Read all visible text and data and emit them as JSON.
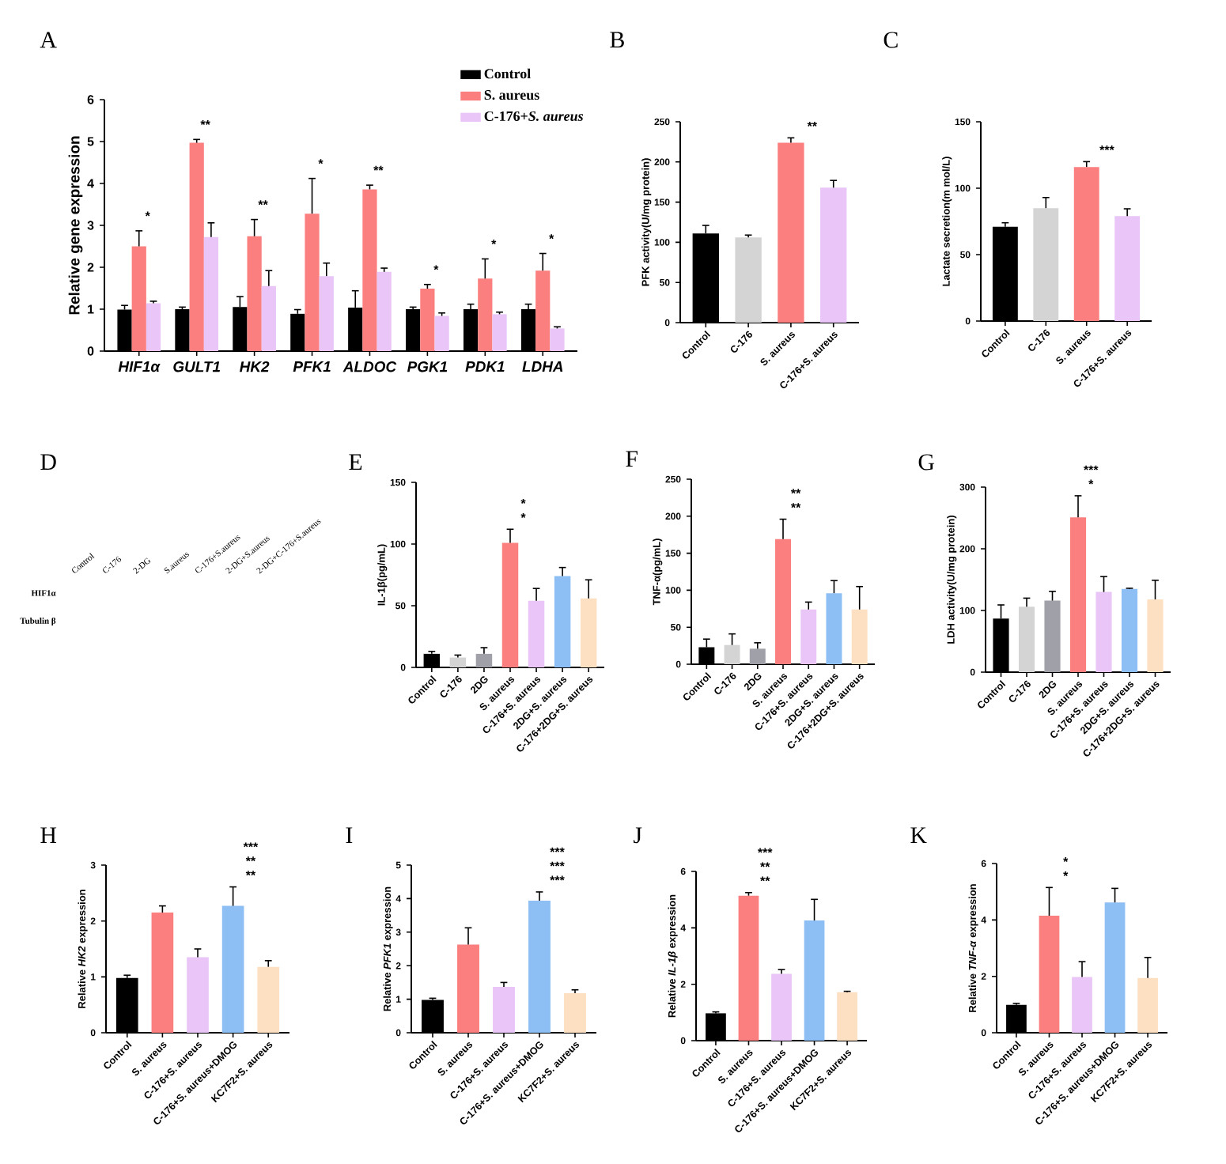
{
  "chart_data": [
    {
      "type": "bar",
      "title": "A",
      "ylabel": "Relative gene expression",
      "categories": [
        "HIF1α",
        "GULT1",
        "HK2",
        "PFK1",
        "ALDOC",
        "PGK1",
        "PDK1",
        "LDHA"
      ],
      "ylim": [
        0,
        6
      ],
      "yticks": [
        0,
        1,
        2,
        3,
        4,
        5,
        6
      ],
      "legend": "top right",
      "series": [
        {
          "name": "Control",
          "color": "#000000",
          "values": [
            0.99,
            1.0,
            1.05,
            0.89,
            1.04,
            1.0,
            1.0,
            1.0
          ],
          "errors": [
            0.1,
            0.05,
            0.25,
            0.1,
            0.4,
            0.05,
            0.12,
            0.12
          ]
        },
        {
          "name": "S. aureus",
          "color": "#fb7f7f",
          "values": [
            2.5,
            4.97,
            2.74,
            3.28,
            3.86,
            1.49,
            1.73,
            1.92
          ],
          "errors": [
            0.37,
            0.08,
            0.4,
            0.84,
            0.1,
            0.1,
            0.47,
            0.41
          ]
        },
        {
          "name": "C-176+*S. aureus*",
          "color": "#e9c6f7",
          "values": [
            1.14,
            2.72,
            1.55,
            1.79,
            1.89,
            0.84,
            0.88,
            0.54
          ],
          "errors": [
            0.05,
            0.34,
            0.37,
            0.31,
            0.09,
            0.07,
            0.05,
            0.04
          ]
        }
      ],
      "annotations": [
        "*",
        "**",
        "**",
        "*",
        "**",
        "*",
        "*",
        "*"
      ]
    },
    {
      "type": "bar",
      "title": "B",
      "ylabel": "PFK activity(U/mg protein)",
      "categories": [
        "Control",
        "C-176",
        "S. aureus",
        "C-176+S. aureus"
      ],
      "values": [
        111,
        106,
        224,
        168
      ],
      "errors": [
        10,
        3,
        6,
        9
      ],
      "colors": [
        "#000000",
        "#d4d4d4",
        "#fb7f7f",
        "#e9c6f7"
      ],
      "ylim": [
        0,
        250
      ],
      "yticks": [
        0,
        50,
        100,
        150,
        200,
        250
      ],
      "annotations": [
        "**"
      ]
    },
    {
      "type": "bar",
      "title": "C",
      "ylabel": "Lactate secretion(m mol/L)",
      "categories": [
        "Control",
        "C-176",
        "S. aureus",
        "C-176+S. aureus"
      ],
      "values": [
        71,
        85,
        116,
        79
      ],
      "errors": [
        3,
        8,
        4,
        5.5
      ],
      "colors": [
        "#000000",
        "#d4d4d4",
        "#fb7f7f",
        "#e9c6f7"
      ],
      "ylim": [
        0,
        150
      ],
      "yticks": [
        0,
        50,
        100,
        150
      ],
      "annotations": [
        "***"
      ]
    },
    {
      "type": "other",
      "title": "D",
      "annotations": [
        "Control",
        "C-176",
        "2-DG",
        "S.aureus",
        "C-176+S.aureus",
        "2-DG+S.aureus",
        "2-DG+C-176+S.aureus",
        "HIF1α",
        "Tubulin β"
      ]
    },
    {
      "type": "bar",
      "title": "E",
      "ylabel": "IL-1β(pg/mL)",
      "categories": [
        "Control",
        "C-176",
        "2DG",
        "S. aureus",
        "C-176+S. aureus",
        "2DG+S. aureus",
        "C-176+2DG+S. aureus"
      ],
      "values": [
        11,
        8,
        11,
        101,
        54,
        74,
        56
      ],
      "errors": [
        2,
        2,
        5,
        11,
        10,
        7,
        15
      ],
      "colors": [
        "#000000",
        "#d4d4d4",
        "#a0a0a8",
        "#fb7f7f",
        "#e9c6f7",
        "#8dbff5",
        "#fde0c2"
      ],
      "ylim": [
        0,
        150
      ],
      "yticks": [
        0,
        50,
        100,
        150
      ],
      "annotations": [
        "*",
        "*"
      ]
    },
    {
      "type": "bar",
      "title": "F",
      "ylabel": "TNF-α(pg/mL)",
      "categories": [
        "Control",
        "C-176",
        "2DG",
        "S. aureus",
        "C-176+S. aureus",
        "2DG+S. aureus",
        "C-176+2DG+S. aureus"
      ],
      "values": [
        23,
        26,
        21,
        169,
        74,
        96,
        74
      ],
      "errors": [
        11,
        15,
        8,
        27,
        10,
        17,
        31
      ],
      "colors": [
        "#000000",
        "#d4d4d4",
        "#a0a0a8",
        "#fb7f7f",
        "#e9c6f7",
        "#8dbff5",
        "#fde0c2"
      ],
      "ylim": [
        0,
        250
      ],
      "yticks": [
        0,
        50,
        100,
        150,
        200,
        250
      ],
      "annotations": [
        "**",
        "**"
      ]
    },
    {
      "type": "bar",
      "title": "G",
      "ylabel": "LDH activity(U/mg protein)",
      "categories": [
        "Control",
        "C-176",
        "2DG",
        "S. aureus",
        "C-176+S. aureus",
        "2DG+S. aureus",
        "C-176+2DG+S. aureus"
      ],
      "values": [
        87,
        106,
        116,
        251,
        130,
        135,
        118
      ],
      "errors": [
        22,
        14,
        15,
        35,
        25,
        1,
        31
      ],
      "colors": [
        "#000000",
        "#d4d4d4",
        "#a0a0a8",
        "#fb7f7f",
        "#e9c6f7",
        "#8dbff5",
        "#fde0c2"
      ],
      "ylim": [
        0,
        300
      ],
      "yticks": [
        0,
        100,
        200,
        300
      ],
      "annotations": [
        "*",
        "***"
      ]
    },
    {
      "type": "bar",
      "title": "H",
      "ylabel": "Relative *HK2* expression",
      "categories": [
        "Control",
        "S. aureus",
        "C-176+S. aureus",
        "C-176+S. aureus+DMOG",
        "KC7F2+S. aureus"
      ],
      "values": [
        0.98,
        2.15,
        1.35,
        2.27,
        1.18
      ],
      "errors": [
        0.05,
        0.12,
        0.15,
        0.34,
        0.11
      ],
      "colors": [
        "#000000",
        "#fb7f7f",
        "#e9c6f7",
        "#8dbff5",
        "#fde0c2"
      ],
      "ylim": [
        0,
        3
      ],
      "yticks": [
        0,
        1,
        2,
        3
      ],
      "annotations": [
        "**",
        "**",
        "***"
      ]
    },
    {
      "type": "bar",
      "title": "I",
      "ylabel": "Relative *PFK1* expression",
      "categories": [
        "Control",
        "S. aureus",
        "C-176+S. aureus",
        "C-176+S. aureus+DMOG",
        "KC7F2+S. aureus"
      ],
      "values": [
        0.98,
        2.63,
        1.37,
        3.94,
        1.18
      ],
      "errors": [
        0.05,
        0.5,
        0.13,
        0.26,
        0.1
      ],
      "colors": [
        "#000000",
        "#fb7f7f",
        "#e9c6f7",
        "#8dbff5",
        "#fde0c2"
      ],
      "ylim": [
        0,
        5
      ],
      "yticks": [
        0,
        1,
        2,
        3,
        4,
        5
      ],
      "annotations": [
        "***",
        "***",
        "***"
      ]
    },
    {
      "type": "bar",
      "title": "J",
      "ylabel": "Relative *IL-1β* expression",
      "categories": [
        "Control",
        "S. aureus",
        "C-176+S. aureus",
        "C-176+S. aureus+DMOG",
        "KC7F2+S. aureus"
      ],
      "values": [
        0.97,
        5.14,
        2.37,
        4.26,
        1.72
      ],
      "errors": [
        0.05,
        0.11,
        0.15,
        0.75,
        0.03
      ],
      "colors": [
        "#000000",
        "#fb7f7f",
        "#e9c6f7",
        "#8dbff5",
        "#fde0c2"
      ],
      "ylim": [
        0,
        6
      ],
      "yticks": [
        0,
        2,
        4,
        6
      ],
      "annotations": [
        "**",
        "**",
        "***"
      ]
    },
    {
      "type": "bar",
      "title": "K",
      "ylabel": "Relative *TNF-α* expression",
      "categories": [
        "Control",
        "S. aureus",
        "C-176+S. aureus",
        "C-176+S. aureus+DMOG",
        "KC7F2+S. aureus"
      ],
      "values": [
        0.99,
        4.15,
        1.98,
        4.62,
        1.94
      ],
      "errors": [
        0.05,
        1.0,
        0.54,
        0.5,
        0.73
      ],
      "colors": [
        "#000000",
        "#fb7f7f",
        "#e9c6f7",
        "#8dbff5",
        "#fde0c2"
      ],
      "ylim": [
        0,
        6
      ],
      "yticks": [
        0,
        2,
        4,
        6
      ],
      "annotations": [
        "*",
        "*"
      ]
    }
  ]
}
